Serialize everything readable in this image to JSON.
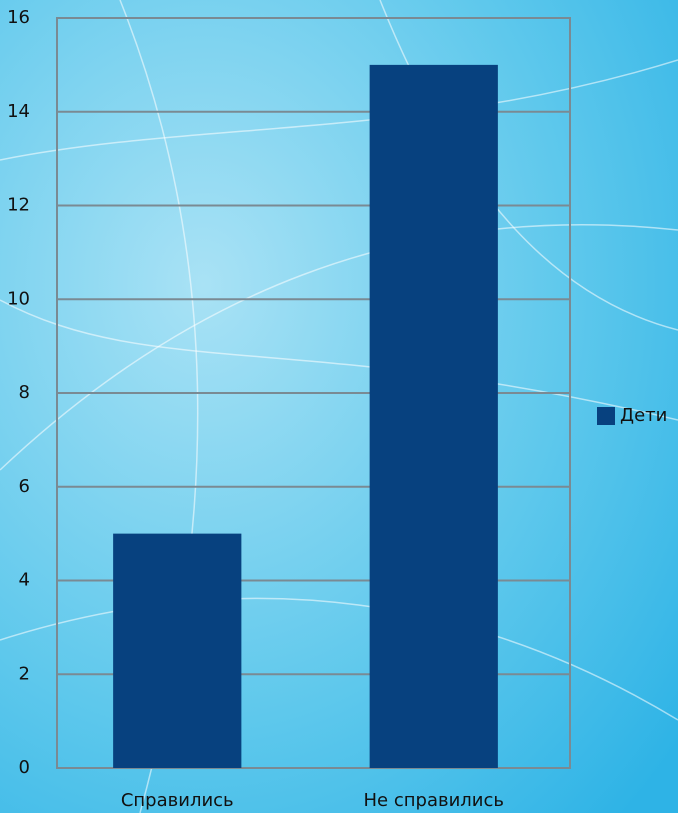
{
  "chart_data": {
    "type": "bar",
    "categories": [
      "Справились",
      "Не справились"
    ],
    "series": [
      {
        "name": "Дети",
        "color": "#07417f",
        "values": [
          5,
          15
        ]
      }
    ],
    "ylim": [
      0,
      16
    ],
    "yticks": [
      0,
      2,
      4,
      6,
      8,
      10,
      12,
      14,
      16
    ],
    "grid": true,
    "legend": "right"
  }
}
